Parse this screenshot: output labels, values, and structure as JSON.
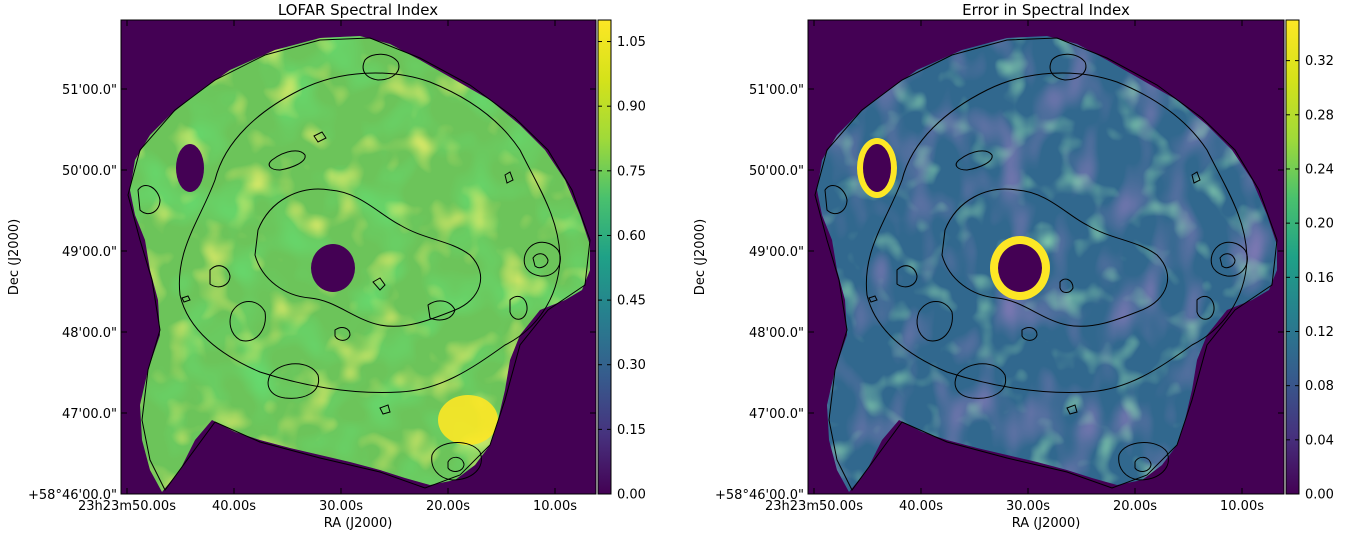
{
  "chart_data": [
    {
      "type": "heatmap",
      "title": "LOFAR Spectral Index",
      "xlabel": "RA (J2000)",
      "ylabel": "Dec (J2000)",
      "x_ticks": [
        "23h23m50.00s",
        "40.00s",
        "30.00s",
        "20.00s",
        "10.00s"
      ],
      "y_ticks": [
        "+58°46'00.0\"",
        "47'00.0\"",
        "48'00.0\"",
        "49'00.0\"",
        "50'00.0\"",
        "51'00.0\""
      ],
      "colorbar": {
        "ticks": [
          "0.00",
          "0.15",
          "0.30",
          "0.45",
          "0.60",
          "0.75",
          "0.90",
          "1.05"
        ],
        "range": [
          0.0,
          1.1
        ],
        "colormap": "viridis"
      }
    },
    {
      "type": "heatmap",
      "title": "Error in Spectral Index",
      "xlabel": "RA (J2000)",
      "ylabel": "Dec (J2000)",
      "x_ticks": [
        "23h23m50.00s",
        "40.00s",
        "30.00s",
        "20.00s",
        "10.00s"
      ],
      "y_ticks": [
        "+58°46'00.0\"",
        "47'00.0\"",
        "48'00.0\"",
        "49'00.0\"",
        "50'00.0\"",
        "51'00.0\""
      ],
      "colorbar": {
        "ticks": [
          "0.00",
          "0.04",
          "0.08",
          "0.12",
          "0.16",
          "0.20",
          "0.24",
          "0.28",
          "0.32"
        ],
        "range": [
          0.0,
          0.35
        ],
        "colormap": "viridis"
      }
    }
  ],
  "colors": {
    "viridis_low": "#440154",
    "viridis_mid": "#21918c",
    "viridis_high": "#fde725",
    "contour": "#000000"
  }
}
